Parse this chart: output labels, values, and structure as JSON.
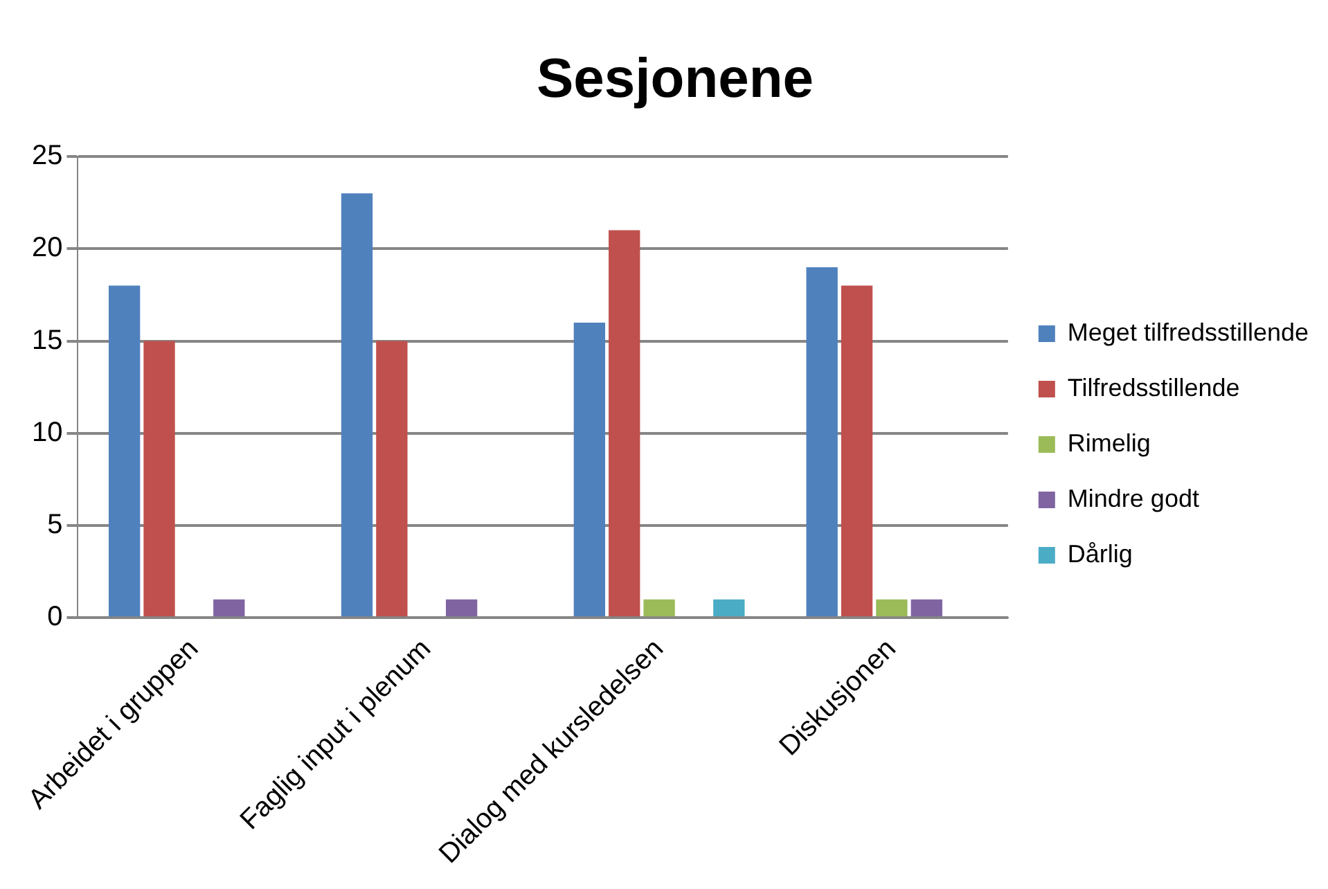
{
  "chart_data": {
    "type": "bar",
    "title": "Sesjonene",
    "categories": [
      "Arbeidet i gruppen",
      "Faglig input i plenum",
      "Dialog med kursledelsen",
      "Diskusjonen"
    ],
    "series": [
      {
        "name": "Meget tilfredsstillende",
        "color": "#4f81bd",
        "values": [
          18,
          23,
          16,
          19
        ]
      },
      {
        "name": "Tilfredsstillende",
        "color": "#c0504d",
        "values": [
          15,
          15,
          21,
          18
        ]
      },
      {
        "name": "Rimelig",
        "color": "#9bbb59",
        "values": [
          0,
          0,
          1,
          1
        ]
      },
      {
        "name": "Mindre godt",
        "color": "#8064a2",
        "values": [
          1,
          1,
          0,
          1
        ]
      },
      {
        "name": "Dårlig",
        "color": "#4bacc6",
        "values": [
          0,
          0,
          1,
          0
        ]
      }
    ],
    "ylim": [
      0,
      25
    ],
    "yticks": [
      0,
      5,
      10,
      15,
      20,
      25
    ],
    "grid": "y",
    "legend": "right"
  }
}
